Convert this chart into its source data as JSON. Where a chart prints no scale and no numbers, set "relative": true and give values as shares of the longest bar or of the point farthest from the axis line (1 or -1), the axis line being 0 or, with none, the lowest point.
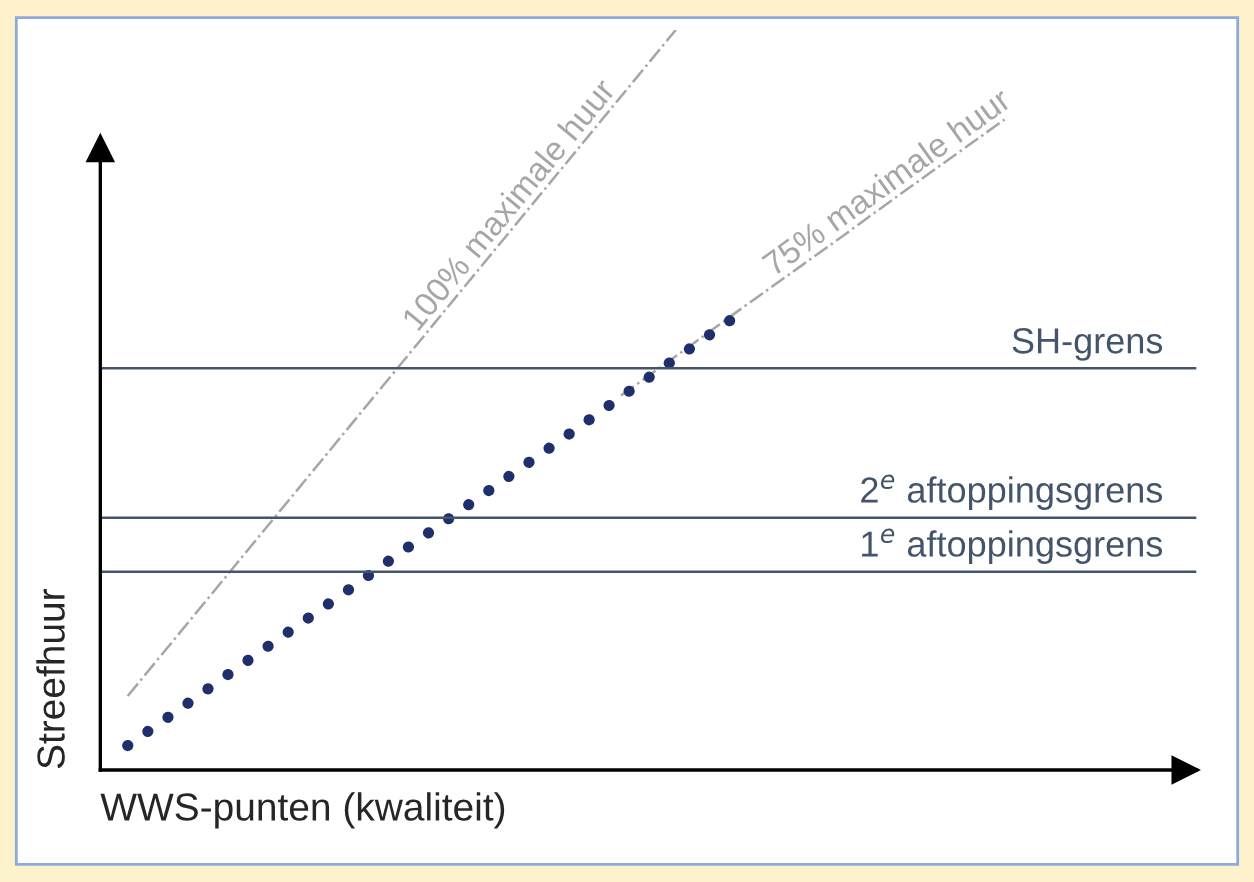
{
  "chart_data": {
    "type": "line",
    "relative": true,
    "xlabel": "WWS-punten (kwaliteit)",
    "ylabel": "Streefhuur",
    "categories": [
      null,
      null,
      null,
      null,
      null,
      null,
      null,
      null,
      null,
      null,
      null,
      null,
      null,
      null,
      null,
      null,
      null,
      null,
      null,
      null
    ],
    "series": [
      {
        "name": "100% maximale huur",
        "color": "#a6a6a6",
        "line_style": "dashdot",
        "values": [
          0.1,
          0.19,
          0.28,
          0.37,
          0.46,
          0.55,
          0.64,
          0.73,
          0.82,
          0.91,
          1.0,
          null,
          null,
          null,
          null,
          null,
          null,
          null,
          null,
          null
        ]
      },
      {
        "name": "75% maximale huur",
        "color": "#a6a6a6",
        "line_style": "dashdot",
        "values": [
          null,
          null,
          null,
          null,
          null,
          null,
          null,
          null,
          null,
          0.506,
          0.559,
          0.613,
          0.666,
          0.719,
          0.773,
          0.826,
          0.879,
          null,
          null,
          null
        ]
      },
      {
        "color": "#1f2f6b",
        "line_style": "dotted",
        "values": [
          0.033,
          0.085,
          0.138,
          0.19,
          0.242,
          0.295,
          0.347,
          0.399,
          0.451,
          0.504,
          0.556,
          0.608,
          null,
          null,
          null,
          null,
          null,
          null,
          null,
          null
        ]
      }
    ],
    "ref_lines": [
      {
        "axis": "y",
        "value": 0.543,
        "label": "SH-grens",
        "color": "#44546a"
      },
      {
        "axis": "y",
        "value": 0.341,
        "label": "2$^{e}$ aftoppingsgrens",
        "color": "#44546a"
      },
      {
        "axis": "y",
        "value": 0.268,
        "label": "1$^{e}$ aftoppingsgrens",
        "color": "#44546a"
      }
    ]
  }
}
